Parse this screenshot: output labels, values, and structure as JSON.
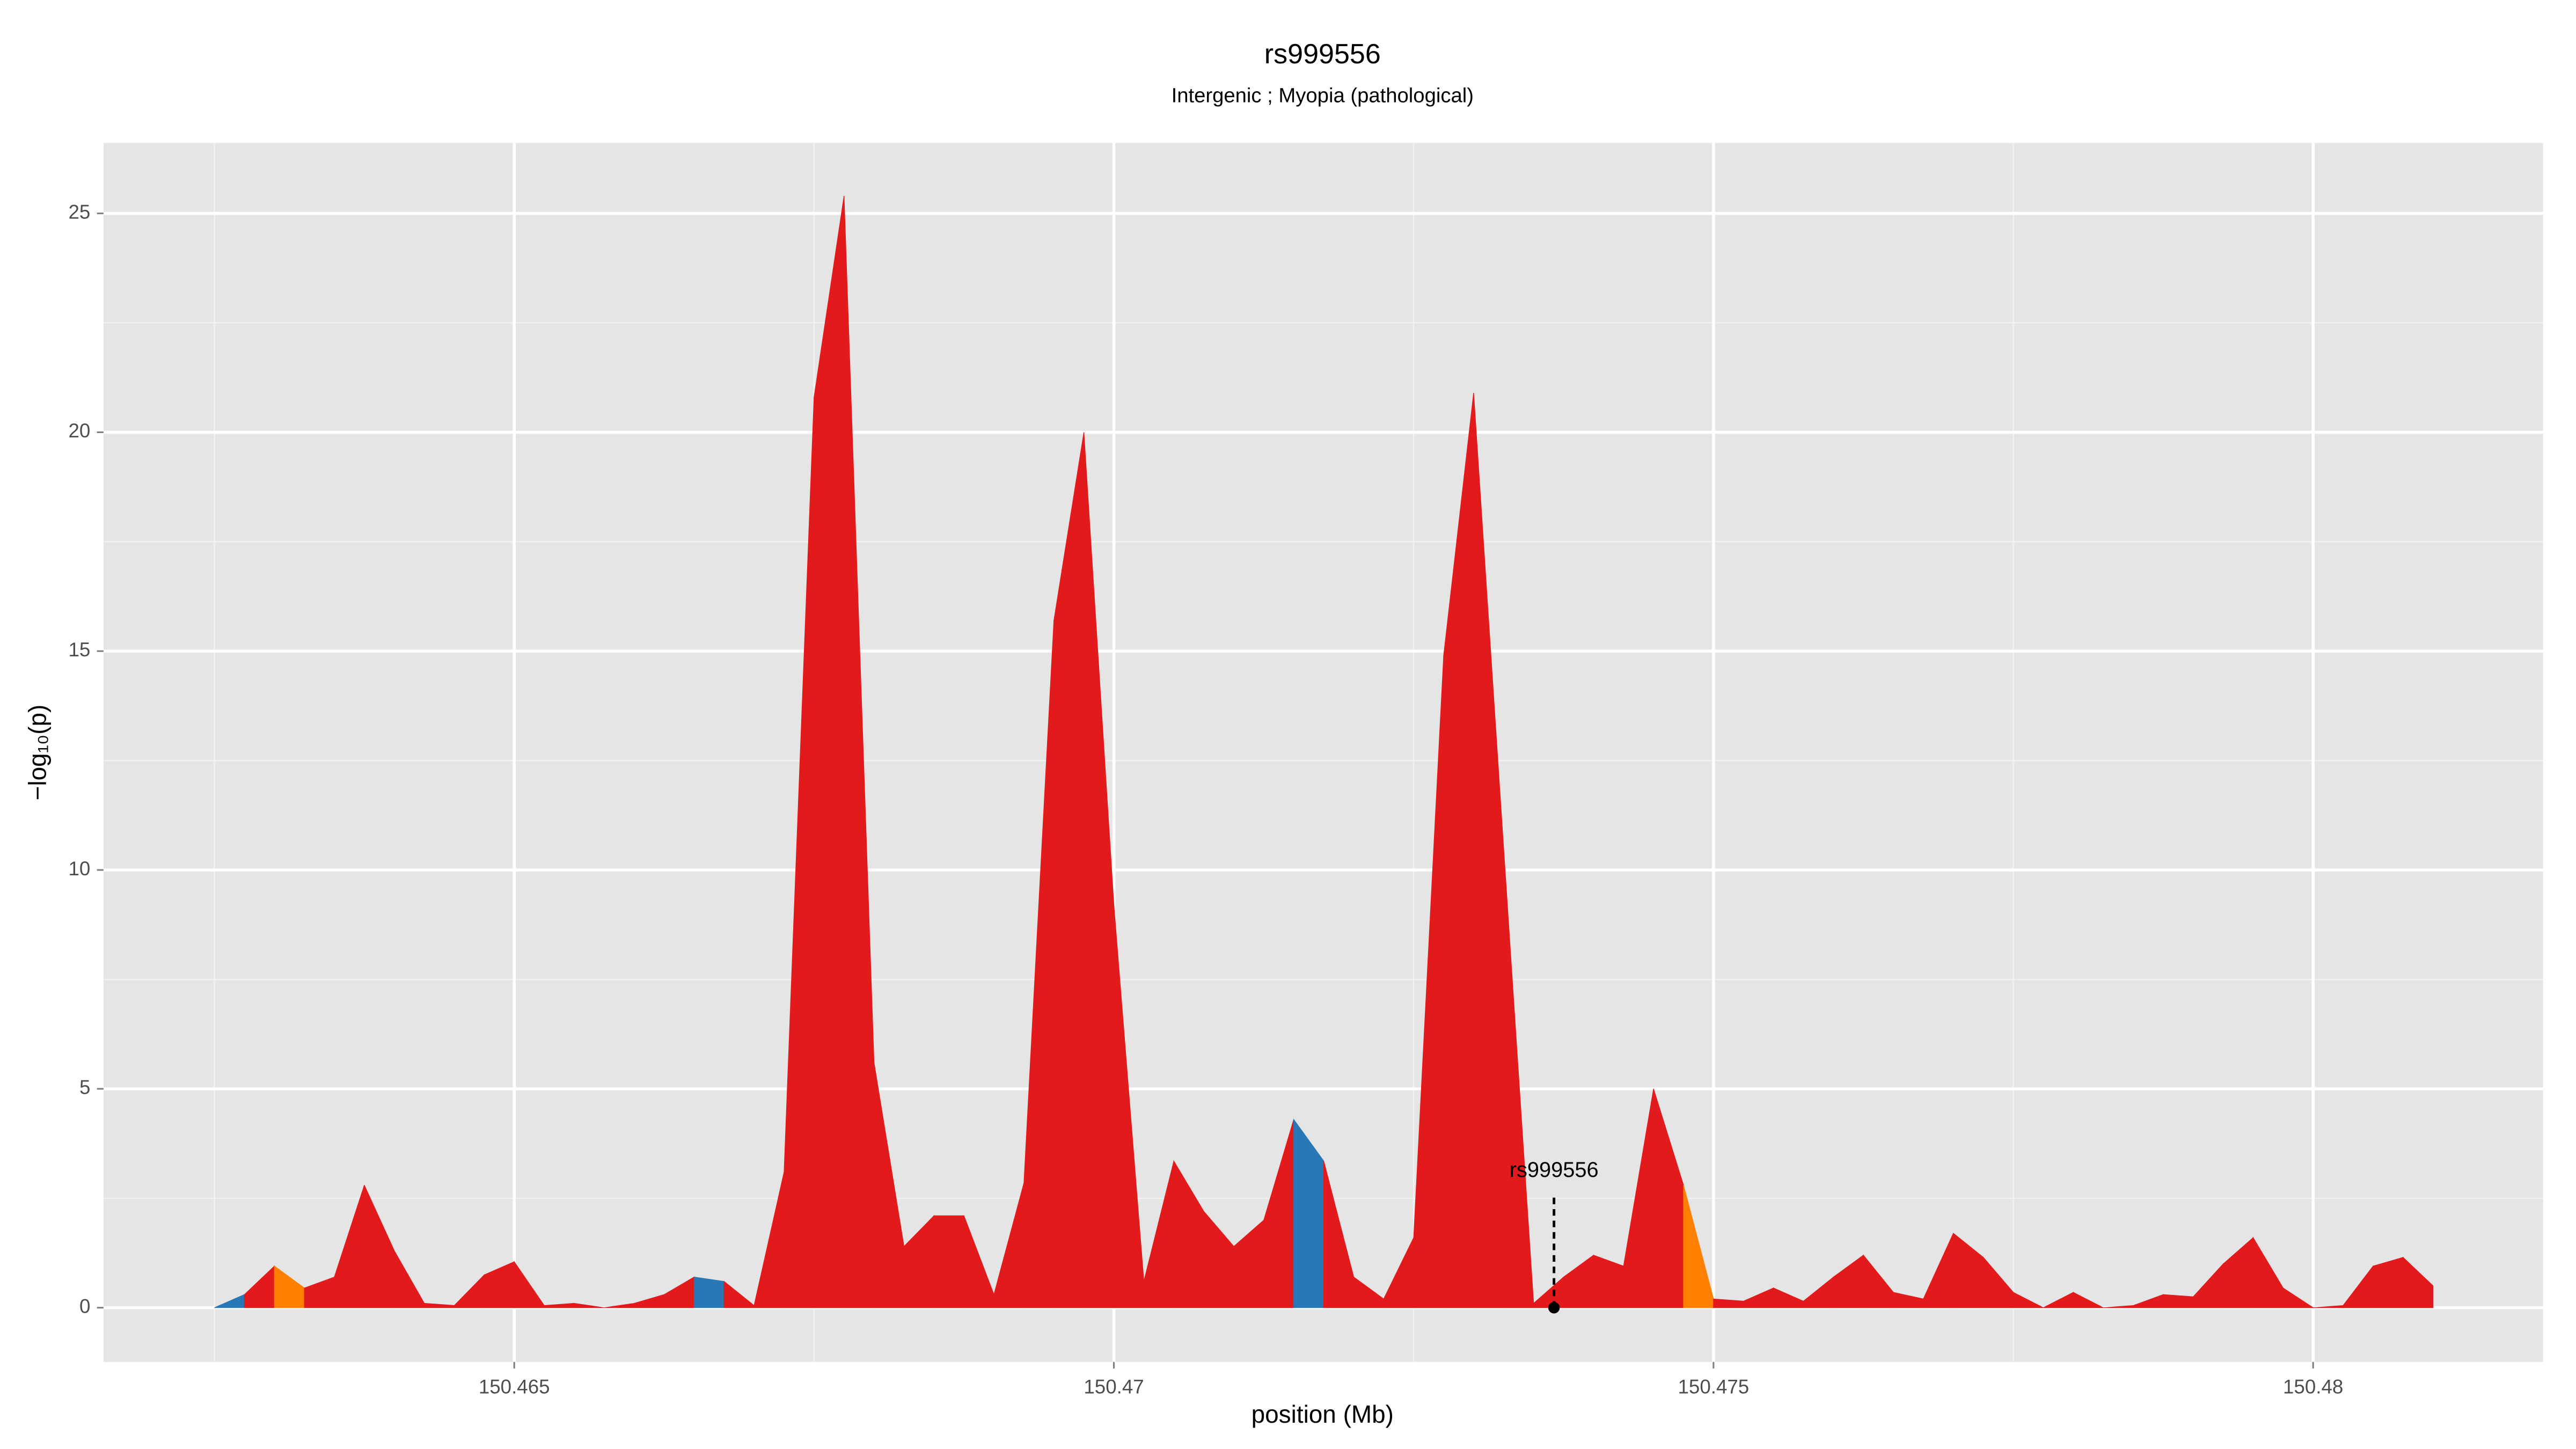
{
  "chart_data": {
    "type": "area",
    "title": "rs999556",
    "subtitle": "Intergenic ; Myopia (pathological)",
    "xlabel": "position (Mb)",
    "ylabel": "−log₁₀(p)",
    "x": [
      150.4625,
      150.46275,
      150.463,
      150.46325,
      150.4635,
      150.46375,
      150.464,
      150.46425,
      150.4645,
      150.46475,
      150.465,
      150.46525,
      150.4655,
      150.46575,
      150.466,
      150.46625,
      150.4665,
      150.46675,
      150.467,
      150.46725,
      150.4675,
      150.46775,
      150.468,
      150.46825,
      150.4685,
      150.46875,
      150.469,
      150.46925,
      150.4695,
      150.46975,
      150.47,
      150.47025,
      150.4705,
      150.47075,
      150.471,
      150.47125,
      150.4715,
      150.47175,
      150.472,
      150.47225,
      150.4725,
      150.47275,
      150.473,
      150.47325,
      150.4735,
      150.47375,
      150.474,
      150.47425,
      150.4745,
      150.47475,
      150.475,
      150.47525,
      150.4755,
      150.47575,
      150.476,
      150.47625,
      150.4765,
      150.47675,
      150.477,
      150.47725,
      150.4775,
      150.47775,
      150.478,
      150.47825,
      150.4785,
      150.47875,
      150.479,
      150.47925,
      150.4795,
      150.47975,
      150.48,
      150.48025,
      150.4805,
      150.48075,
      150.481
    ],
    "values": [
      0.0,
      0.3,
      0.95,
      0.45,
      0.7,
      2.8,
      1.3,
      0.1,
      0.05,
      0.75,
      1.05,
      0.05,
      0.1,
      0.0,
      0.1,
      0.3,
      0.7,
      0.6,
      0.05,
      3.1,
      20.8,
      25.4,
      5.6,
      1.4,
      2.1,
      2.1,
      0.3,
      2.85,
      15.7,
      20.0,
      9.2,
      0.6,
      3.35,
      2.2,
      1.4,
      2.0,
      4.3,
      3.35,
      0.7,
      0.2,
      1.6,
      14.9,
      20.9,
      10.5,
      0.1,
      0.7,
      1.2,
      0.95,
      5.0,
      2.8,
      0.2,
      0.15,
      0.45,
      0.15,
      0.7,
      1.2,
      0.35,
      0.2,
      1.7,
      1.15,
      0.35,
      0.0,
      0.35,
      0.0,
      0.05,
      0.3,
      0.25,
      1.0,
      1.6,
      0.45,
      0.0,
      0.05,
      0.95,
      1.15,
      0.5
    ],
    "segment_colors": [
      "#2878b5",
      "#e31a1c",
      "#ff7f00",
      "#e31a1c",
      "#e31a1c",
      "#e31a1c",
      "#e31a1c",
      "#e31a1c",
      "#e31a1c",
      "#e31a1c",
      "#e31a1c",
      "#e31a1c",
      "#e31a1c",
      "#e31a1c",
      "#e31a1c",
      "#e31a1c",
      "#2878b5",
      "#e31a1c",
      "#e31a1c",
      "#e31a1c",
      "#e31a1c",
      "#e31a1c",
      "#e31a1c",
      "#e31a1c",
      "#e31a1c",
      "#e31a1c",
      "#e31a1c",
      "#e31a1c",
      "#e31a1c",
      "#e31a1c",
      "#e31a1c",
      "#e31a1c",
      "#e31a1c",
      "#e31a1c",
      "#e31a1c",
      "#e31a1c",
      "#2878b5",
      "#e31a1c",
      "#e31a1c",
      "#e31a1c",
      "#e31a1c",
      "#e31a1c",
      "#e31a1c",
      "#e31a1c",
      "#e31a1c",
      "#e31a1c",
      "#e31a1c",
      "#e31a1c",
      "#e31a1c",
      "#ff7f00",
      "#e31a1c",
      "#e31a1c",
      "#e31a1c",
      "#e31a1c",
      "#e31a1c",
      "#e31a1c",
      "#e31a1c",
      "#e31a1c",
      "#e31a1c",
      "#e31a1c",
      "#e31a1c",
      "#e31a1c",
      "#e31a1c",
      "#e31a1c",
      "#e31a1c",
      "#e31a1c",
      "#e31a1c",
      "#e31a1c",
      "#e31a1c",
      "#e31a1c",
      "#e31a1c",
      "#e31a1c",
      "#e31a1c",
      "#e31a1c"
    ],
    "annotation": {
      "text": "rs999556",
      "x": 150.47367,
      "y": 0
    },
    "xlim": [
      150.461575,
      150.481918
    ],
    "ylim": [
      -1.239,
      26.61
    ],
    "xticks": [
      150.465,
      150.47,
      150.475,
      150.48
    ],
    "yticks": [
      0,
      5,
      10,
      15,
      20,
      25
    ],
    "grid": true,
    "minor_grid": true
  }
}
